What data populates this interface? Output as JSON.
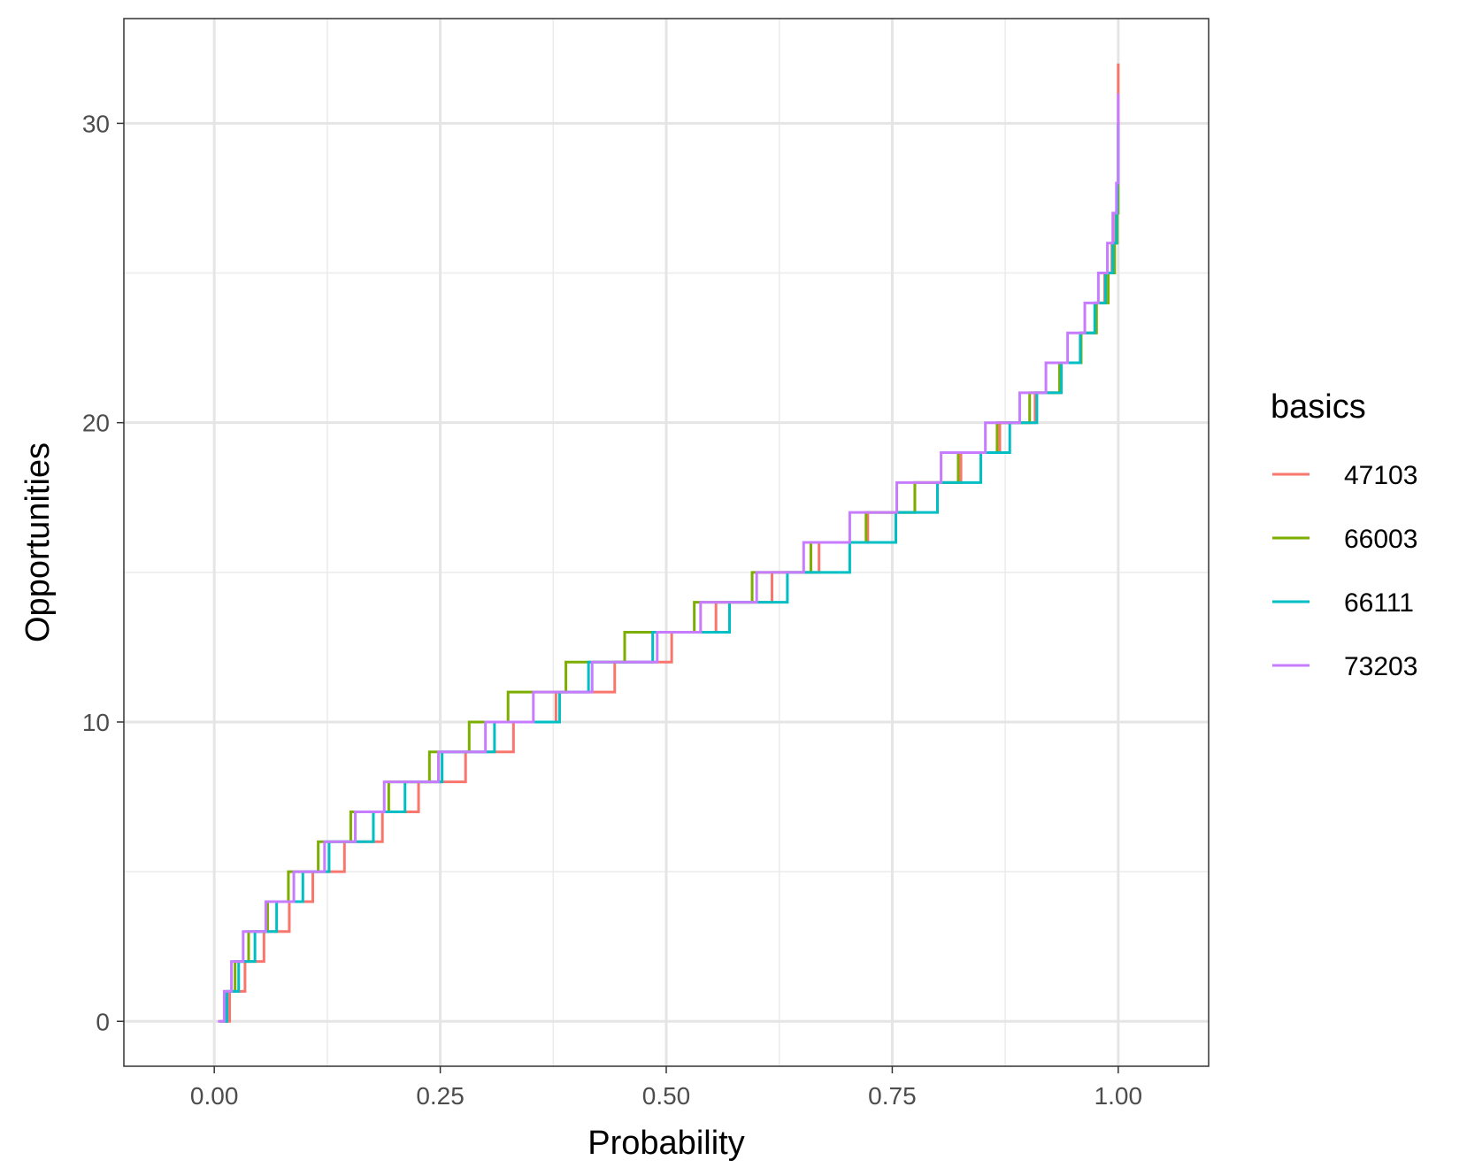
{
  "chart_data": {
    "type": "line",
    "step": true,
    "xlabel": "Probability",
    "ylabel": "Opportunities",
    "xlim": [
      -0.1,
      1.1
    ],
    "ylim": [
      -1.5,
      33.5
    ],
    "xticks": [
      0.0,
      0.25,
      0.5,
      0.75,
      1.0
    ],
    "xtick_labels": [
      "0.00",
      "0.25",
      "0.50",
      "0.75",
      "1.00"
    ],
    "yticks": [
      0,
      10,
      20,
      30
    ],
    "ytick_labels": [
      "0",
      "10",
      "20",
      "30"
    ],
    "grid": true,
    "legend_position": "right",
    "legend_title": "basics",
    "series": [
      {
        "name": "47103",
        "color": "#F8766D",
        "y": [
          0,
          1,
          2,
          3,
          4,
          5,
          6,
          7,
          8,
          9,
          10,
          11,
          12,
          13,
          14,
          15,
          16,
          17,
          18,
          19,
          20,
          21,
          22,
          23,
          24,
          25,
          26,
          27,
          28,
          29,
          30,
          31,
          32
        ],
        "x": [
          0.012,
          0.017,
          0.034,
          0.055,
          0.083,
          0.109,
          0.144,
          0.186,
          0.226,
          0.278,
          0.331,
          0.378,
          0.443,
          0.506,
          0.555,
          0.617,
          0.669,
          0.723,
          0.775,
          0.826,
          0.869,
          0.908,
          0.936,
          0.958,
          0.975,
          0.985,
          0.993,
          0.997,
          0.999,
          1.0,
          1.0,
          1.0,
          1.0
        ]
      },
      {
        "name": "66003",
        "color": "#7CAE00",
        "y": [
          0,
          1,
          2,
          3,
          4,
          5,
          6,
          7,
          8,
          9,
          10,
          11,
          12,
          13,
          14,
          15,
          16,
          17,
          18,
          19,
          20,
          21,
          22,
          23,
          24,
          25,
          26,
          27,
          28,
          29,
          30
        ],
        "x": [
          0.006,
          0.012,
          0.023,
          0.038,
          0.059,
          0.082,
          0.115,
          0.151,
          0.193,
          0.238,
          0.282,
          0.325,
          0.389,
          0.454,
          0.531,
          0.595,
          0.66,
          0.721,
          0.775,
          0.823,
          0.866,
          0.902,
          0.935,
          0.959,
          0.976,
          0.989,
          0.996,
          0.999,
          1.0,
          1.0,
          1.0
        ]
      },
      {
        "name": "66111",
        "color": "#00BFC4",
        "y": [
          0,
          1,
          2,
          3,
          4,
          5,
          6,
          7,
          8,
          9,
          10,
          11,
          12,
          13,
          14,
          15,
          16,
          17,
          18,
          19,
          20,
          21,
          22,
          23,
          24,
          25,
          26,
          27,
          28,
          29,
          30
        ],
        "x": [
          0.008,
          0.014,
          0.027,
          0.045,
          0.069,
          0.098,
          0.127,
          0.176,
          0.211,
          0.252,
          0.31,
          0.382,
          0.414,
          0.485,
          0.57,
          0.634,
          0.703,
          0.754,
          0.8,
          0.848,
          0.88,
          0.91,
          0.937,
          0.958,
          0.974,
          0.986,
          0.994,
          0.998,
          0.999,
          1.0,
          1.0
        ]
      },
      {
        "name": "73203",
        "color": "#C77CFF",
        "y": [
          0,
          1,
          2,
          3,
          4,
          5,
          6,
          7,
          8,
          9,
          10,
          11,
          12,
          13,
          14,
          15,
          16,
          17,
          18,
          19,
          20,
          21,
          22,
          23,
          24,
          25,
          26,
          27,
          28,
          29,
          30,
          31
        ],
        "x": [
          0.004,
          0.011,
          0.019,
          0.032,
          0.057,
          0.088,
          0.122,
          0.156,
          0.188,
          0.248,
          0.3,
          0.353,
          0.418,
          0.49,
          0.538,
          0.6,
          0.652,
          0.703,
          0.755,
          0.804,
          0.853,
          0.891,
          0.92,
          0.944,
          0.963,
          0.978,
          0.988,
          0.994,
          0.998,
          1.0,
          1.0,
          1.0
        ]
      }
    ]
  }
}
